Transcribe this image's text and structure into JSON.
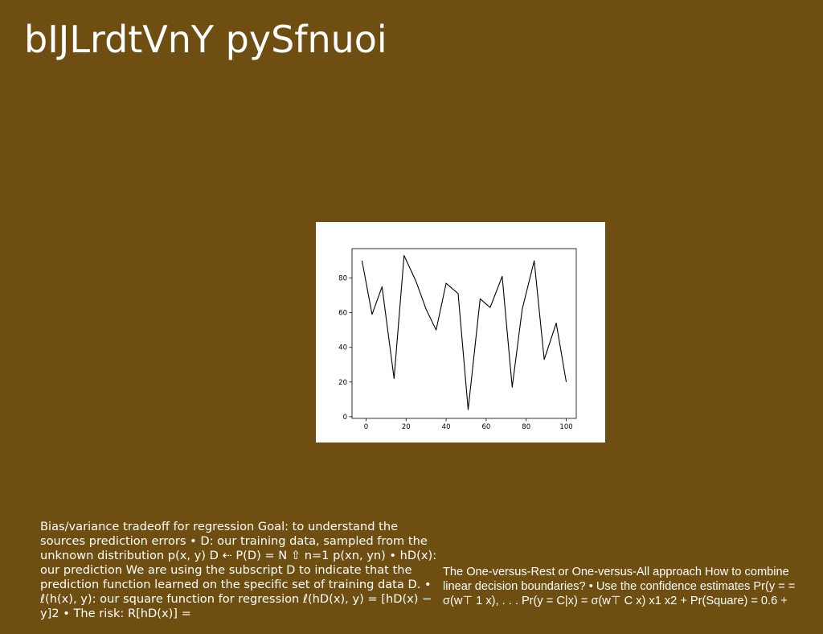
{
  "slide": {
    "title": "bIJLrdtVnY pySfnuoi",
    "background_color": "#6f4e12",
    "text_left": "Bias/variance tradeoff for regression Goal: to understand the sources prediction errors • D: our training data, sampled from the unknown distribution p(x, y) D ⇠ P(D) = N ⇧ n=1 p(xn, yn) • hD(x): our prediction We are using the subscript D to indicate that the prediction function learned on the specific set of training data D. • ℓ(h(x), y): our square function for regression ℓ(hD(x), y) = [hD(x) − y]2 • The risk: R[hD(x)] =",
    "text_right": "The One-versus-Rest or One-versus-All approach How to combine linear decision boundaries? • Use the confidence estimates Pr(y = = σ(w⊤ 1 x), . . . Pr(y = C|x) = σ(w⊤ C x) x1 x2 + Pr(Square) = 0.6 +"
  },
  "chart_data": {
    "type": "line",
    "x": [
      -2,
      3,
      8,
      14,
      19,
      25,
      30,
      35,
      40,
      46,
      51,
      57,
      62,
      68,
      73,
      78,
      84,
      89,
      95,
      100
    ],
    "series": [
      {
        "values": [
          90,
          59,
          75,
          22,
          93,
          78,
          62,
          50,
          77,
          71,
          4,
          68,
          63,
          81,
          17,
          62,
          90,
          33,
          54,
          20
        ]
      }
    ],
    "xticks": [
      0,
      20,
      40,
      60,
      80,
      100
    ],
    "yticks": [
      0,
      20,
      40,
      60,
      80
    ],
    "xlim": [
      -7,
      105
    ],
    "ylim": [
      -1,
      97
    ],
    "title": "",
    "xlabel": "",
    "ylabel": "",
    "grid": false,
    "line_color": "#000000"
  }
}
